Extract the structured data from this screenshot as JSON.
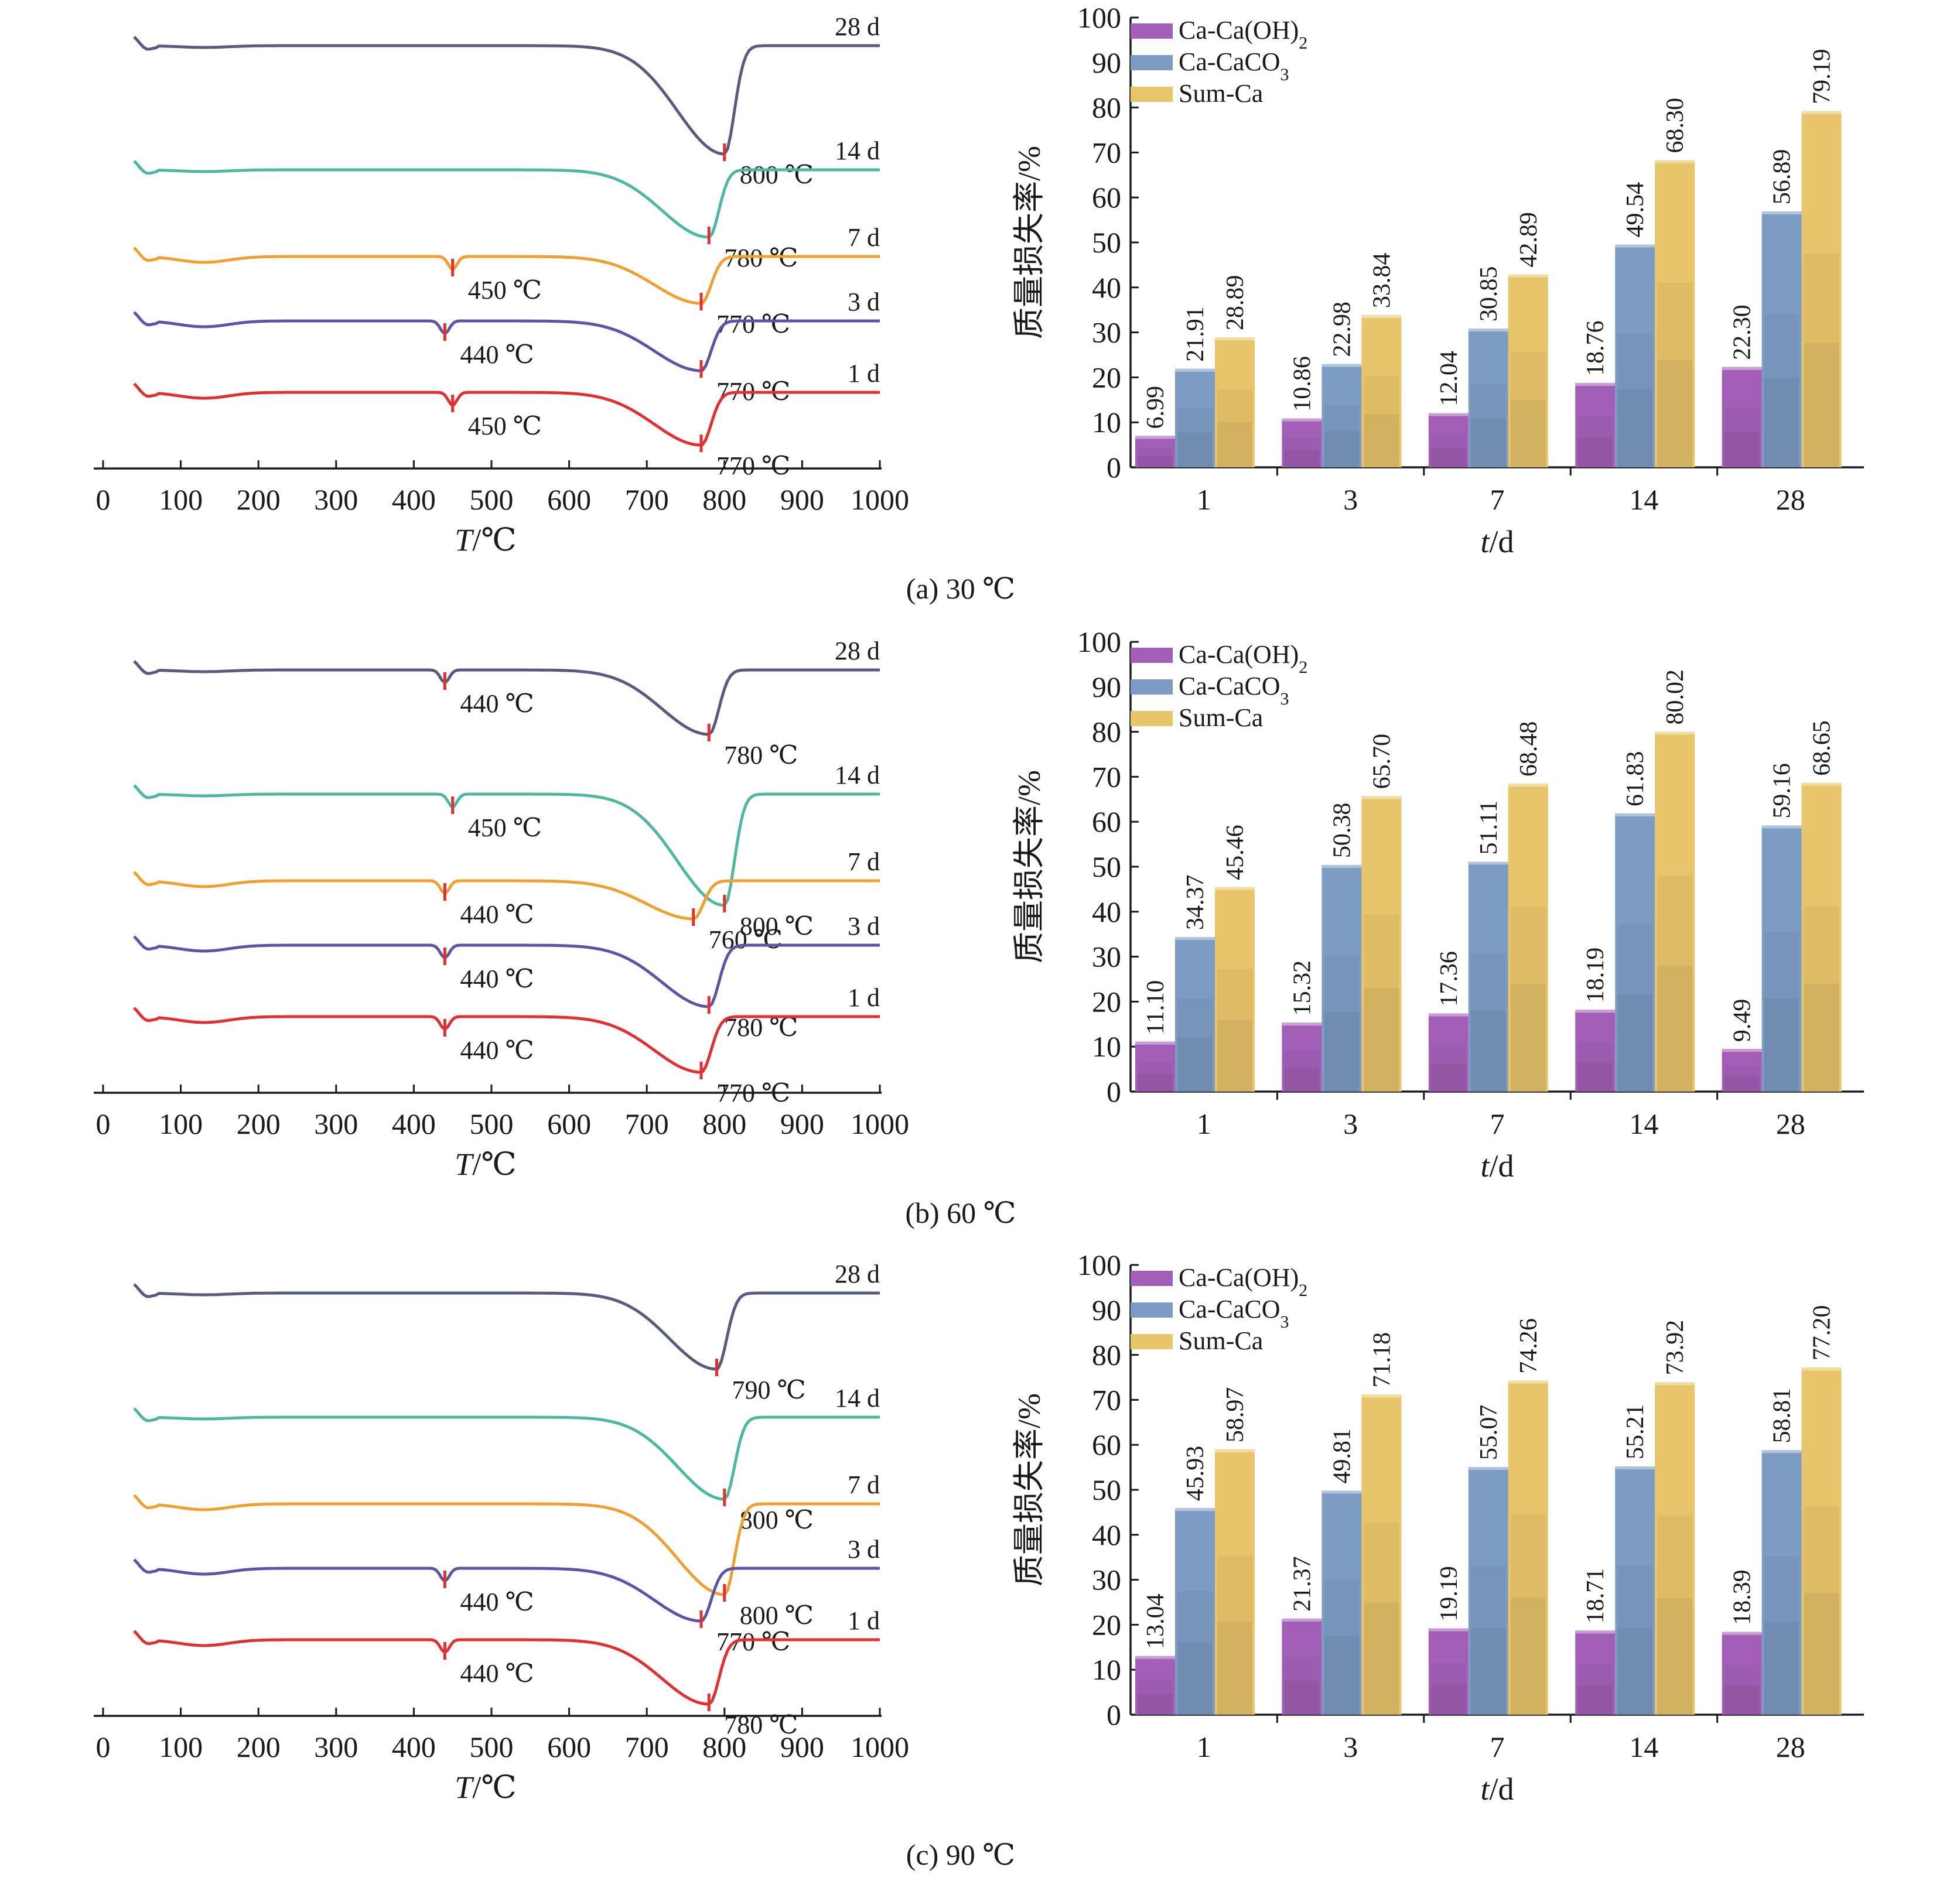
{
  "figure": {
    "panels": [
      {
        "caption": "(a) 30 ℃"
      },
      {
        "caption": "(b) 60 ℃"
      },
      {
        "caption": "(c) 90 ℃"
      }
    ]
  },
  "colors": {
    "ca_oh2": "#a35fb7",
    "ca_caco3": "#7c9cc4",
    "sum_ca": "#e8c56a",
    "curve_28d": "#585a7e",
    "curve_14d": "#4cb8a0",
    "curve_7d": "#f0a030",
    "curve_3d": "#5a55a4",
    "curve_1d": "#e23030",
    "marker": "#e03030"
  },
  "chart_data": [
    {
      "type": "line",
      "panel": "(a) 30 ℃",
      "xlabel_italic": "T",
      "xlabel_unit": "/℃",
      "xlim": [
        0,
        1000
      ],
      "x_ticks": [
        "0",
        "100",
        "200",
        "300",
        "400",
        "500",
        "600",
        "700",
        "800",
        "900",
        "1000"
      ],
      "y_axis_shown": false,
      "series": [
        {
          "name": "28 d",
          "color": "curve_28d",
          "peaks": [
            {
              "x": 800,
              "label": "800 ℃"
            }
          ]
        },
        {
          "name": "14 d",
          "color": "curve_14d",
          "peaks": [
            {
              "x": 780,
              "label": "780 ℃"
            }
          ]
        },
        {
          "name": "7 d",
          "color": "curve_7d",
          "peaks": [
            {
              "x": 450,
              "label": "450 ℃"
            },
            {
              "x": 770,
              "label": "770 ℃"
            }
          ]
        },
        {
          "name": "3 d",
          "color": "curve_3d",
          "peaks": [
            {
              "x": 440,
              "label": "440 ℃"
            },
            {
              "x": 770,
              "label": "770 ℃"
            }
          ]
        },
        {
          "name": "1 d",
          "color": "curve_1d",
          "peaks": [
            {
              "x": 450,
              "label": "450 ℃"
            },
            {
              "x": 770,
              "label": "770 ℃"
            }
          ]
        }
      ]
    },
    {
      "type": "bar",
      "panel": "(a) 30 ℃",
      "xlabel_italic": "t",
      "xlabel_unit": "/d",
      "ylabel": "质量损失率/%",
      "ylim": [
        0,
        100
      ],
      "y_ticks": [
        "0",
        "10",
        "20",
        "30",
        "40",
        "50",
        "60",
        "70",
        "80",
        "90",
        "100"
      ],
      "categories": [
        "1",
        "3",
        "7",
        "14",
        "28"
      ],
      "legend_position": "top-left",
      "series": [
        {
          "name": "Ca-Ca(OH)",
          "name_sub": "2",
          "color": "ca_oh2",
          "values": [
            6.99,
            10.86,
            12.04,
            18.76,
            22.3
          ],
          "labels": [
            "6.99",
            "10.86",
            "12.04",
            "18.76",
            "22.30"
          ]
        },
        {
          "name": "Ca-CaCO",
          "name_sub": "3",
          "color": "ca_caco3",
          "values": [
            21.91,
            22.98,
            30.85,
            49.54,
            56.89
          ],
          "labels": [
            "21.91",
            "22.98",
            "30.85",
            "49.54",
            "56.89"
          ]
        },
        {
          "name": "Sum-Ca",
          "name_sub": "",
          "color": "sum_ca",
          "values": [
            28.89,
            33.84,
            42.89,
            68.3,
            79.19
          ],
          "labels": [
            "28.89",
            "33.84",
            "42.89",
            "68.30",
            "79.19"
          ]
        }
      ]
    },
    {
      "type": "line",
      "panel": "(b) 60 ℃",
      "xlabel_italic": "T",
      "xlabel_unit": "/℃",
      "xlim": [
        0,
        1000
      ],
      "x_ticks": [
        "0",
        "100",
        "200",
        "300",
        "400",
        "500",
        "600",
        "700",
        "800",
        "900",
        "1000"
      ],
      "y_axis_shown": false,
      "series": [
        {
          "name": "28 d",
          "color": "curve_28d",
          "peaks": [
            {
              "x": 440,
              "label": "440 ℃"
            },
            {
              "x": 780,
              "label": "780 ℃"
            }
          ]
        },
        {
          "name": "14 d",
          "color": "curve_14d",
          "peaks": [
            {
              "x": 450,
              "label": "450 ℃"
            },
            {
              "x": 800,
              "label": "800 ℃"
            }
          ]
        },
        {
          "name": "7 d",
          "color": "curve_7d",
          "peaks": [
            {
              "x": 440,
              "label": "440 ℃"
            },
            {
              "x": 760,
              "label": "760 ℃"
            }
          ]
        },
        {
          "name": "3 d",
          "color": "curve_3d",
          "peaks": [
            {
              "x": 440,
              "label": "440 ℃"
            },
            {
              "x": 780,
              "label": "780 ℃"
            }
          ]
        },
        {
          "name": "1 d",
          "color": "curve_1d",
          "peaks": [
            {
              "x": 440,
              "label": "440 ℃"
            },
            {
              "x": 770,
              "label": "770 ℃"
            }
          ]
        }
      ]
    },
    {
      "type": "bar",
      "panel": "(b) 60 ℃",
      "xlabel_italic": "t",
      "xlabel_unit": "/d",
      "ylabel": "质量损失率/%",
      "ylim": [
        0,
        100
      ],
      "y_ticks": [
        "0",
        "10",
        "20",
        "30",
        "40",
        "50",
        "60",
        "70",
        "80",
        "90",
        "100"
      ],
      "categories": [
        "1",
        "3",
        "7",
        "14",
        "28"
      ],
      "legend_position": "top-left",
      "series": [
        {
          "name": "Ca-Ca(OH)",
          "name_sub": "2",
          "color": "ca_oh2",
          "values": [
            11.1,
            15.32,
            17.36,
            18.19,
            9.49
          ],
          "labels": [
            "11.10",
            "15.32",
            "17.36",
            "18.19",
            "9.49"
          ]
        },
        {
          "name": "Ca-CaCO",
          "name_sub": "3",
          "color": "ca_caco3",
          "values": [
            34.37,
            50.38,
            51.11,
            61.83,
            59.16
          ],
          "labels": [
            "34.37",
            "50.38",
            "51.11",
            "61.83",
            "59.16"
          ]
        },
        {
          "name": "Sum-Ca",
          "name_sub": "",
          "color": "sum_ca",
          "values": [
            45.46,
            65.7,
            68.48,
            80.02,
            68.65
          ],
          "labels": [
            "45.46",
            "65.70",
            "68.48",
            "80.02",
            "68.65"
          ]
        }
      ]
    },
    {
      "type": "line",
      "panel": "(c) 90 ℃",
      "xlabel_italic": "T",
      "xlabel_unit": "/℃",
      "xlim": [
        0,
        1000
      ],
      "x_ticks": [
        "0",
        "100",
        "200",
        "300",
        "400",
        "500",
        "600",
        "700",
        "800",
        "900",
        "1000"
      ],
      "y_axis_shown": false,
      "series": [
        {
          "name": "28 d",
          "color": "curve_28d",
          "peaks": [
            {
              "x": 790,
              "label": "790 ℃"
            }
          ]
        },
        {
          "name": "14 d",
          "color": "curve_14d",
          "peaks": [
            {
              "x": 800,
              "label": "800 ℃"
            }
          ]
        },
        {
          "name": "7 d",
          "color": "curve_7d",
          "peaks": [
            {
              "x": 800,
              "label": "800 ℃"
            }
          ]
        },
        {
          "name": "3 d",
          "color": "curve_3d",
          "peaks": [
            {
              "x": 440,
              "label": "440 ℃"
            },
            {
              "x": 770,
              "label": "770 ℃"
            }
          ]
        },
        {
          "name": "1 d",
          "color": "curve_1d",
          "peaks": [
            {
              "x": 440,
              "label": "440 ℃"
            },
            {
              "x": 780,
              "label": "780 ℃"
            }
          ]
        }
      ]
    },
    {
      "type": "bar",
      "panel": "(c) 90 ℃",
      "xlabel_italic": "t",
      "xlabel_unit": "/d",
      "ylabel": "质量损失率/%",
      "ylim": [
        0,
        100
      ],
      "y_ticks": [
        "0",
        "10",
        "20",
        "30",
        "40",
        "50",
        "60",
        "70",
        "80",
        "90",
        "100"
      ],
      "categories": [
        "1",
        "3",
        "7",
        "14",
        "28"
      ],
      "legend_position": "top-left",
      "series": [
        {
          "name": "Ca-Ca(OH)",
          "name_sub": "2",
          "color": "ca_oh2",
          "values": [
            13.04,
            21.37,
            19.19,
            18.71,
            18.39
          ],
          "labels": [
            "13.04",
            "21.37",
            "19.19",
            "18.71",
            "18.39"
          ]
        },
        {
          "name": "Ca-CaCO",
          "name_sub": "3",
          "color": "ca_caco3",
          "values": [
            45.93,
            49.81,
            55.07,
            55.21,
            58.81
          ],
          "labels": [
            "45.93",
            "49.81",
            "55.07",
            "55.21",
            "58.81"
          ]
        },
        {
          "name": "Sum-Ca",
          "name_sub": "",
          "color": "sum_ca",
          "values": [
            58.97,
            71.18,
            74.26,
            73.92,
            77.2
          ],
          "labels": [
            "58.97",
            "71.18",
            "74.26",
            "73.92",
            "77.20"
          ]
        }
      ]
    }
  ]
}
